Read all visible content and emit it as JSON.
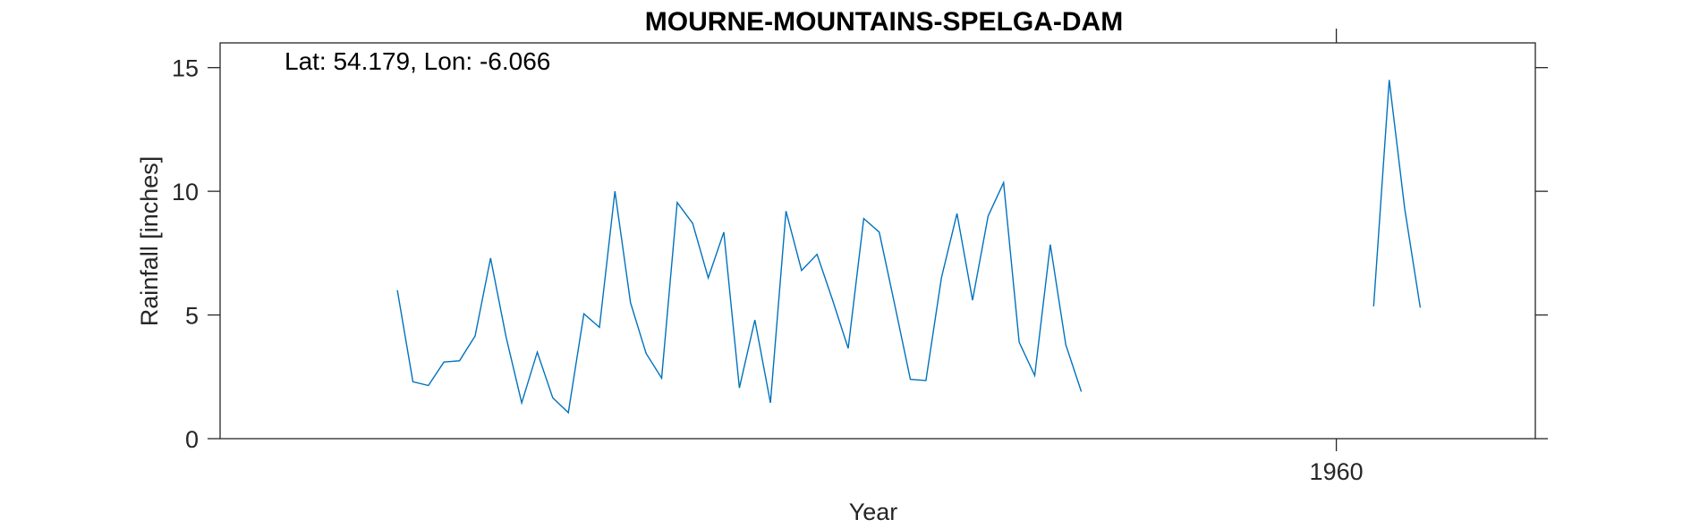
{
  "chart_data": {
    "type": "line",
    "title": "MOURNE-MOUNTAINS-SPELGA-DAM",
    "annotation": "Lat: 54.179, Lon: -6.066",
    "xlabel": "Year",
    "ylabel": "Rainfall [inches]",
    "xlim": [
      1924.1,
      1966.4
    ],
    "ylim": [
      0,
      16
    ],
    "yticks": [
      0,
      5,
      10,
      15
    ],
    "xticks": [
      1960
    ],
    "grid": false,
    "line_color": "#0072BD",
    "segments": [
      {
        "x": [
          1929.8,
          1930.3,
          1930.8,
          1931.3,
          1931.8,
          1932.3,
          1932.8,
          1933.3,
          1933.8,
          1934.3,
          1934.8,
          1935.3,
          1935.8,
          1936.3,
          1936.8,
          1937.3,
          1937.8,
          1938.3,
          1938.8,
          1939.3,
          1939.8,
          1940.3,
          1940.8,
          1941.3,
          1941.8,
          1942.3,
          1942.8,
          1943.3,
          1943.8,
          1944.3,
          1944.8,
          1945.3,
          1945.8,
          1946.3,
          1946.8,
          1947.3,
          1947.8,
          1948.3,
          1948.8,
          1949.3,
          1949.8,
          1950.3,
          1950.8,
          1951.3,
          1951.8
        ],
        "y": [
          6.0,
          2.3,
          2.15,
          3.1,
          3.15,
          4.15,
          7.3,
          4.1,
          1.45,
          3.5,
          1.65,
          1.05,
          5.05,
          4.5,
          10.0,
          5.5,
          3.45,
          2.45,
          9.55,
          8.7,
          6.5,
          8.35,
          2.05,
          4.8,
          1.45,
          9.2,
          6.8,
          7.45,
          5.6,
          3.65,
          8.9,
          8.35,
          5.4,
          2.4,
          2.35,
          6.5,
          9.1,
          5.6,
          9.0,
          10.35,
          3.9,
          2.55,
          7.85,
          3.8,
          1.9
        ]
      },
      {
        "x": [
          1961.2,
          1961.7,
          1962.2,
          1962.7
        ],
        "y": [
          5.35,
          14.5,
          9.3,
          5.3
        ]
      }
    ]
  }
}
